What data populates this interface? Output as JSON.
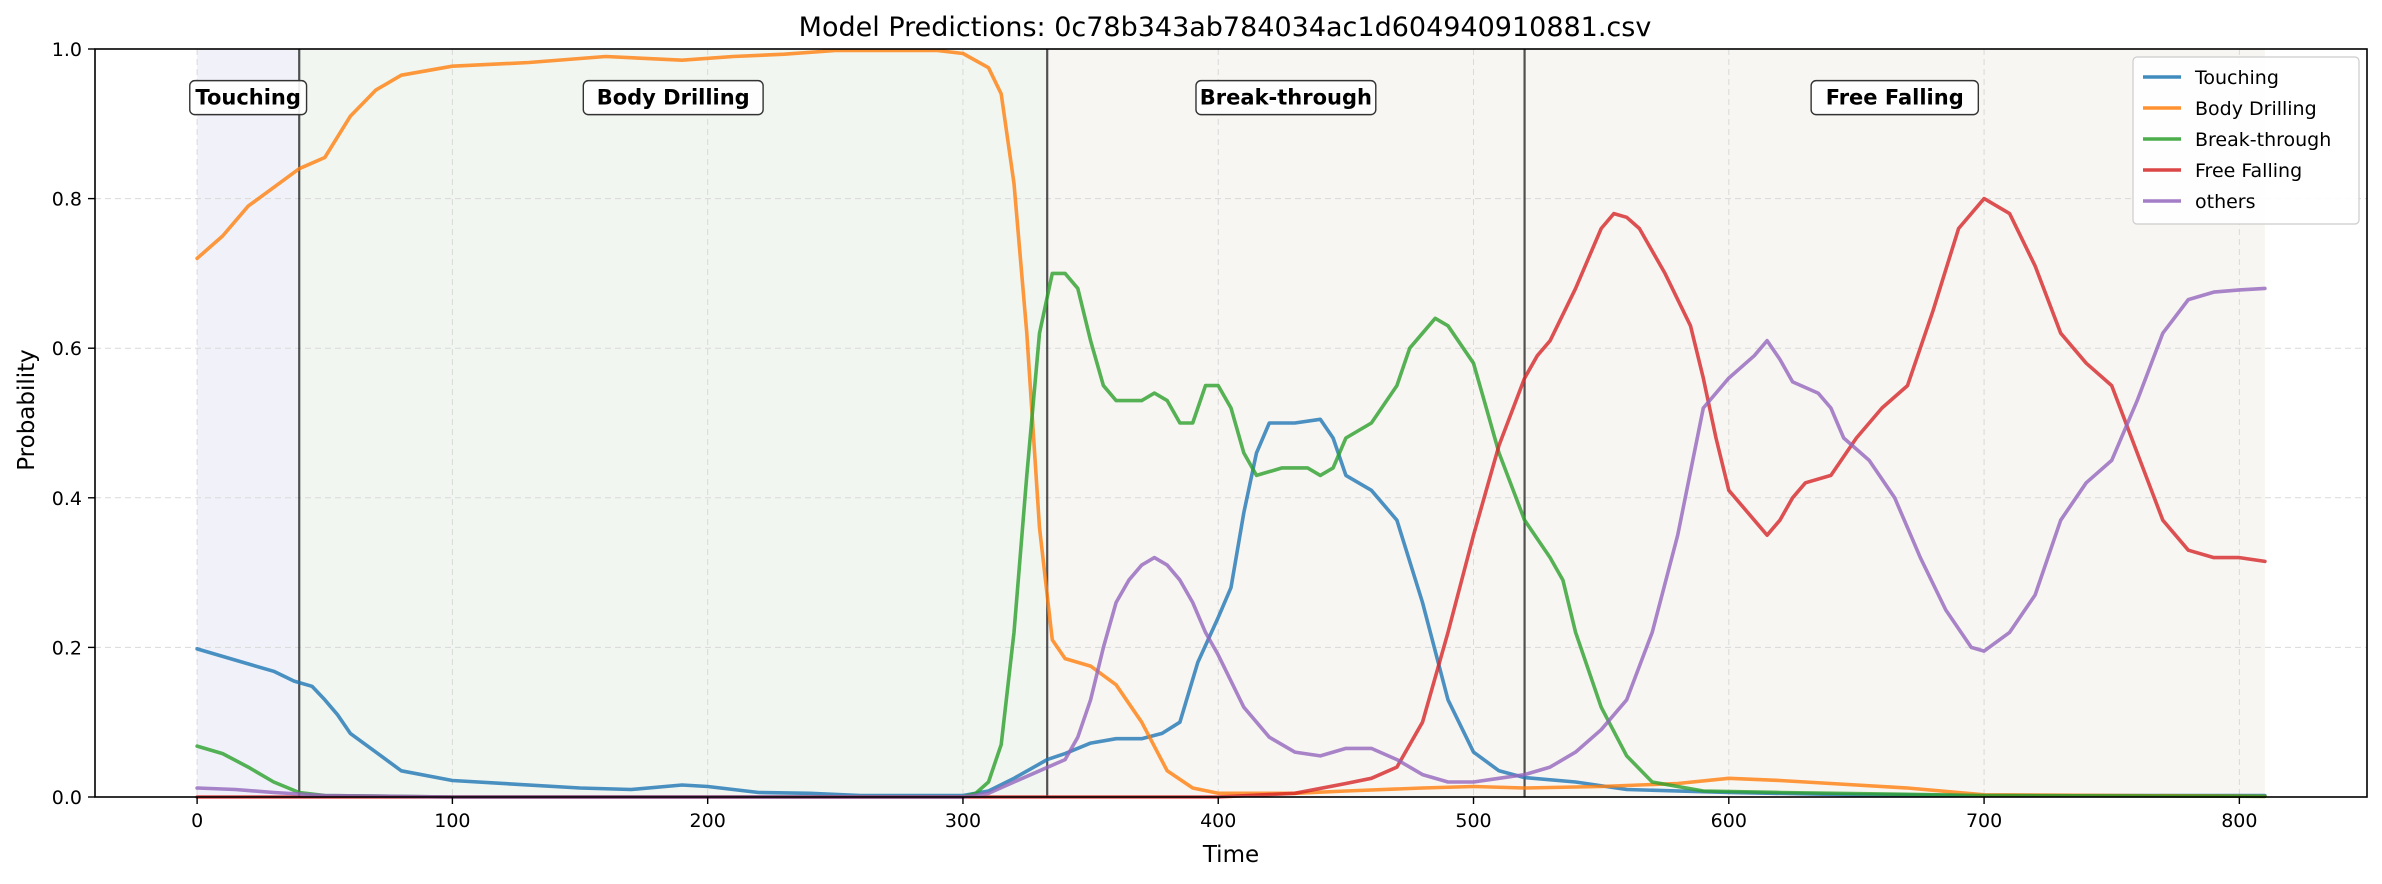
{
  "chart_data": {
    "type": "line",
    "title": "Model Predictions: 0c78b343ab784034ac1d604940910881.csv",
    "xlabel": "Time",
    "ylabel": "Probability",
    "xlim": [
      -40,
      850
    ],
    "ylim": [
      0,
      1.0
    ],
    "x_ticks": [
      0,
      100,
      200,
      300,
      400,
      500,
      600,
      700,
      800
    ],
    "y_ticks": [
      0.0,
      0.2,
      0.4,
      0.6,
      0.8,
      1.0
    ],
    "x_tick_labels": [
      "0",
      "100",
      "200",
      "300",
      "400",
      "500",
      "600",
      "700",
      "800"
    ],
    "y_tick_labels": [
      "0.0",
      "0.2",
      "0.4",
      "0.6",
      "0.8",
      "1.0"
    ],
    "grid": true,
    "legend_position": "top-right",
    "phase_boundaries": [
      40,
      333,
      520
    ],
    "phases": [
      {
        "label": "Touching",
        "start": 0,
        "end": 40,
        "color": "#eef0f8"
      },
      {
        "label": "Body Drilling",
        "start": 40,
        "end": 333,
        "color": "#eff5ee"
      },
      {
        "label": "Break-through",
        "start": 333,
        "end": 520,
        "color": "#f7f5f0"
      },
      {
        "label": "Free Falling",
        "start": 520,
        "end": 810,
        "color": "#f7f4f1"
      }
    ],
    "series": [
      {
        "name": "Touching",
        "color": "#1f77b4",
        "points": [
          [
            0,
            0.198
          ],
          [
            10,
            0.188
          ],
          [
            20,
            0.178
          ],
          [
            30,
            0.168
          ],
          [
            38,
            0.155
          ],
          [
            45,
            0.148
          ],
          [
            50,
            0.13
          ],
          [
            55,
            0.11
          ],
          [
            60,
            0.085
          ],
          [
            70,
            0.06
          ],
          [
            80,
            0.035
          ],
          [
            100,
            0.022
          ],
          [
            150,
            0.012
          ],
          [
            170,
            0.01
          ],
          [
            190,
            0.016
          ],
          [
            200,
            0.014
          ],
          [
            220,
            0.006
          ],
          [
            240,
            0.005
          ],
          [
            260,
            0.002
          ],
          [
            300,
            0.002
          ],
          [
            310,
            0.008
          ],
          [
            320,
            0.025
          ],
          [
            333,
            0.05
          ],
          [
            340,
            0.058
          ],
          [
            350,
            0.072
          ],
          [
            360,
            0.078
          ],
          [
            370,
            0.078
          ],
          [
            378,
            0.085
          ],
          [
            385,
            0.1
          ],
          [
            392,
            0.18
          ],
          [
            400,
            0.24
          ],
          [
            405,
            0.28
          ],
          [
            410,
            0.38
          ],
          [
            415,
            0.46
          ],
          [
            420,
            0.5
          ],
          [
            430,
            0.5
          ],
          [
            440,
            0.505
          ],
          [
            445,
            0.48
          ],
          [
            450,
            0.43
          ],
          [
            460,
            0.41
          ],
          [
            470,
            0.37
          ],
          [
            480,
            0.26
          ],
          [
            490,
            0.13
          ],
          [
            500,
            0.06
          ],
          [
            510,
            0.035
          ],
          [
            520,
            0.026
          ],
          [
            540,
            0.02
          ],
          [
            560,
            0.01
          ],
          [
            600,
            0.006
          ],
          [
            650,
            0.003
          ],
          [
            700,
            0.002
          ],
          [
            810,
            0.002
          ]
        ]
      },
      {
        "name": "Body Drilling",
        "color": "#ff7f0e",
        "points": [
          [
            0,
            0.72
          ],
          [
            10,
            0.75
          ],
          [
            20,
            0.79
          ],
          [
            30,
            0.815
          ],
          [
            40,
            0.84
          ],
          [
            50,
            0.855
          ],
          [
            60,
            0.91
          ],
          [
            70,
            0.945
          ],
          [
            80,
            0.965
          ],
          [
            100,
            0.977
          ],
          [
            130,
            0.982
          ],
          [
            160,
            0.99
          ],
          [
            190,
            0.985
          ],
          [
            210,
            0.99
          ],
          [
            230,
            0.993
          ],
          [
            250,
            0.998
          ],
          [
            290,
            0.998
          ],
          [
            300,
            0.994
          ],
          [
            310,
            0.975
          ],
          [
            315,
            0.94
          ],
          [
            320,
            0.82
          ],
          [
            325,
            0.62
          ],
          [
            330,
            0.36
          ],
          [
            335,
            0.21
          ],
          [
            340,
            0.185
          ],
          [
            350,
            0.175
          ],
          [
            360,
            0.15
          ],
          [
            370,
            0.1
          ],
          [
            380,
            0.035
          ],
          [
            390,
            0.012
          ],
          [
            400,
            0.005
          ],
          [
            430,
            0.005
          ],
          [
            450,
            0.008
          ],
          [
            480,
            0.012
          ],
          [
            500,
            0.014
          ],
          [
            520,
            0.012
          ],
          [
            550,
            0.014
          ],
          [
            580,
            0.018
          ],
          [
            600,
            0.025
          ],
          [
            620,
            0.022
          ],
          [
            640,
            0.018
          ],
          [
            670,
            0.012
          ],
          [
            700,
            0.003
          ],
          [
            810,
            0.001
          ]
        ]
      },
      {
        "name": "Break-through",
        "color": "#2ca02c",
        "points": [
          [
            0,
            0.068
          ],
          [
            10,
            0.058
          ],
          [
            20,
            0.04
          ],
          [
            30,
            0.02
          ],
          [
            40,
            0.006
          ],
          [
            50,
            0.002
          ],
          [
            100,
            0.0
          ],
          [
            300,
            0.0
          ],
          [
            305,
            0.005
          ],
          [
            310,
            0.02
          ],
          [
            315,
            0.07
          ],
          [
            320,
            0.22
          ],
          [
            325,
            0.43
          ],
          [
            330,
            0.62
          ],
          [
            335,
            0.7
          ],
          [
            340,
            0.7
          ],
          [
            345,
            0.68
          ],
          [
            350,
            0.61
          ],
          [
            355,
            0.55
          ],
          [
            360,
            0.53
          ],
          [
            370,
            0.53
          ],
          [
            375,
            0.54
          ],
          [
            380,
            0.53
          ],
          [
            385,
            0.5
          ],
          [
            390,
            0.5
          ],
          [
            395,
            0.55
          ],
          [
            400,
            0.55
          ],
          [
            405,
            0.52
          ],
          [
            410,
            0.46
          ],
          [
            415,
            0.43
          ],
          [
            425,
            0.44
          ],
          [
            435,
            0.44
          ],
          [
            440,
            0.43
          ],
          [
            445,
            0.44
          ],
          [
            450,
            0.48
          ],
          [
            460,
            0.5
          ],
          [
            470,
            0.55
          ],
          [
            475,
            0.6
          ],
          [
            485,
            0.64
          ],
          [
            490,
            0.63
          ],
          [
            500,
            0.58
          ],
          [
            505,
            0.52
          ],
          [
            510,
            0.46
          ],
          [
            520,
            0.37
          ],
          [
            530,
            0.32
          ],
          [
            535,
            0.29
          ],
          [
            540,
            0.22
          ],
          [
            550,
            0.12
          ],
          [
            560,
            0.055
          ],
          [
            570,
            0.02
          ],
          [
            590,
            0.008
          ],
          [
            620,
            0.006
          ],
          [
            700,
            0.002
          ],
          [
            810,
            0.001
          ]
        ]
      },
      {
        "name": "Free Falling",
        "color": "#d62728",
        "points": [
          [
            0,
            0.0
          ],
          [
            400,
            0.0
          ],
          [
            430,
            0.005
          ],
          [
            450,
            0.018
          ],
          [
            460,
            0.025
          ],
          [
            470,
            0.04
          ],
          [
            480,
            0.1
          ],
          [
            490,
            0.22
          ],
          [
            500,
            0.35
          ],
          [
            510,
            0.47
          ],
          [
            520,
            0.56
          ],
          [
            525,
            0.59
          ],
          [
            530,
            0.61
          ],
          [
            540,
            0.68
          ],
          [
            550,
            0.76
          ],
          [
            555,
            0.78
          ],
          [
            560,
            0.775
          ],
          [
            565,
            0.76
          ],
          [
            575,
            0.7
          ],
          [
            585,
            0.63
          ],
          [
            590,
            0.56
          ],
          [
            595,
            0.48
          ],
          [
            600,
            0.41
          ],
          [
            610,
            0.37
          ],
          [
            615,
            0.35
          ],
          [
            620,
            0.37
          ],
          [
            625,
            0.4
          ],
          [
            630,
            0.42
          ],
          [
            640,
            0.43
          ],
          [
            650,
            0.48
          ],
          [
            660,
            0.52
          ],
          [
            670,
            0.55
          ],
          [
            680,
            0.65
          ],
          [
            690,
            0.76
          ],
          [
            700,
            0.8
          ],
          [
            710,
            0.78
          ],
          [
            720,
            0.71
          ],
          [
            730,
            0.62
          ],
          [
            740,
            0.58
          ],
          [
            750,
            0.55
          ],
          [
            760,
            0.46
          ],
          [
            770,
            0.37
          ],
          [
            780,
            0.33
          ],
          [
            790,
            0.32
          ],
          [
            800,
            0.32
          ],
          [
            810,
            0.315
          ]
        ]
      },
      {
        "name": "others",
        "color": "#9467bd",
        "points": [
          [
            0,
            0.012
          ],
          [
            15,
            0.01
          ],
          [
            30,
            0.006
          ],
          [
            50,
            0.002
          ],
          [
            100,
            0.0
          ],
          [
            300,
            0.0
          ],
          [
            310,
            0.005
          ],
          [
            320,
            0.02
          ],
          [
            330,
            0.035
          ],
          [
            340,
            0.05
          ],
          [
            345,
            0.08
          ],
          [
            350,
            0.13
          ],
          [
            355,
            0.2
          ],
          [
            360,
            0.26
          ],
          [
            365,
            0.29
          ],
          [
            370,
            0.31
          ],
          [
            375,
            0.32
          ],
          [
            380,
            0.31
          ],
          [
            385,
            0.29
          ],
          [
            390,
            0.26
          ],
          [
            395,
            0.22
          ],
          [
            400,
            0.19
          ],
          [
            410,
            0.12
          ],
          [
            420,
            0.08
          ],
          [
            430,
            0.06
          ],
          [
            440,
            0.055
          ],
          [
            450,
            0.065
          ],
          [
            460,
            0.065
          ],
          [
            470,
            0.05
          ],
          [
            480,
            0.03
          ],
          [
            490,
            0.02
          ],
          [
            500,
            0.02
          ],
          [
            510,
            0.025
          ],
          [
            520,
            0.03
          ],
          [
            530,
            0.04
          ],
          [
            540,
            0.06
          ],
          [
            550,
            0.09
          ],
          [
            560,
            0.13
          ],
          [
            570,
            0.22
          ],
          [
            580,
            0.35
          ],
          [
            590,
            0.52
          ],
          [
            600,
            0.56
          ],
          [
            610,
            0.59
          ],
          [
            615,
            0.61
          ],
          [
            620,
            0.585
          ],
          [
            625,
            0.555
          ],
          [
            635,
            0.54
          ],
          [
            640,
            0.52
          ],
          [
            645,
            0.48
          ],
          [
            655,
            0.45
          ],
          [
            665,
            0.4
          ],
          [
            675,
            0.32
          ],
          [
            685,
            0.25
          ],
          [
            695,
            0.2
          ],
          [
            700,
            0.195
          ],
          [
            710,
            0.22
          ],
          [
            720,
            0.27
          ],
          [
            730,
            0.37
          ],
          [
            740,
            0.42
          ],
          [
            750,
            0.45
          ],
          [
            760,
            0.53
          ],
          [
            770,
            0.62
          ],
          [
            780,
            0.665
          ],
          [
            790,
            0.675
          ],
          [
            800,
            0.678
          ],
          [
            810,
            0.68
          ]
        ]
      }
    ]
  }
}
